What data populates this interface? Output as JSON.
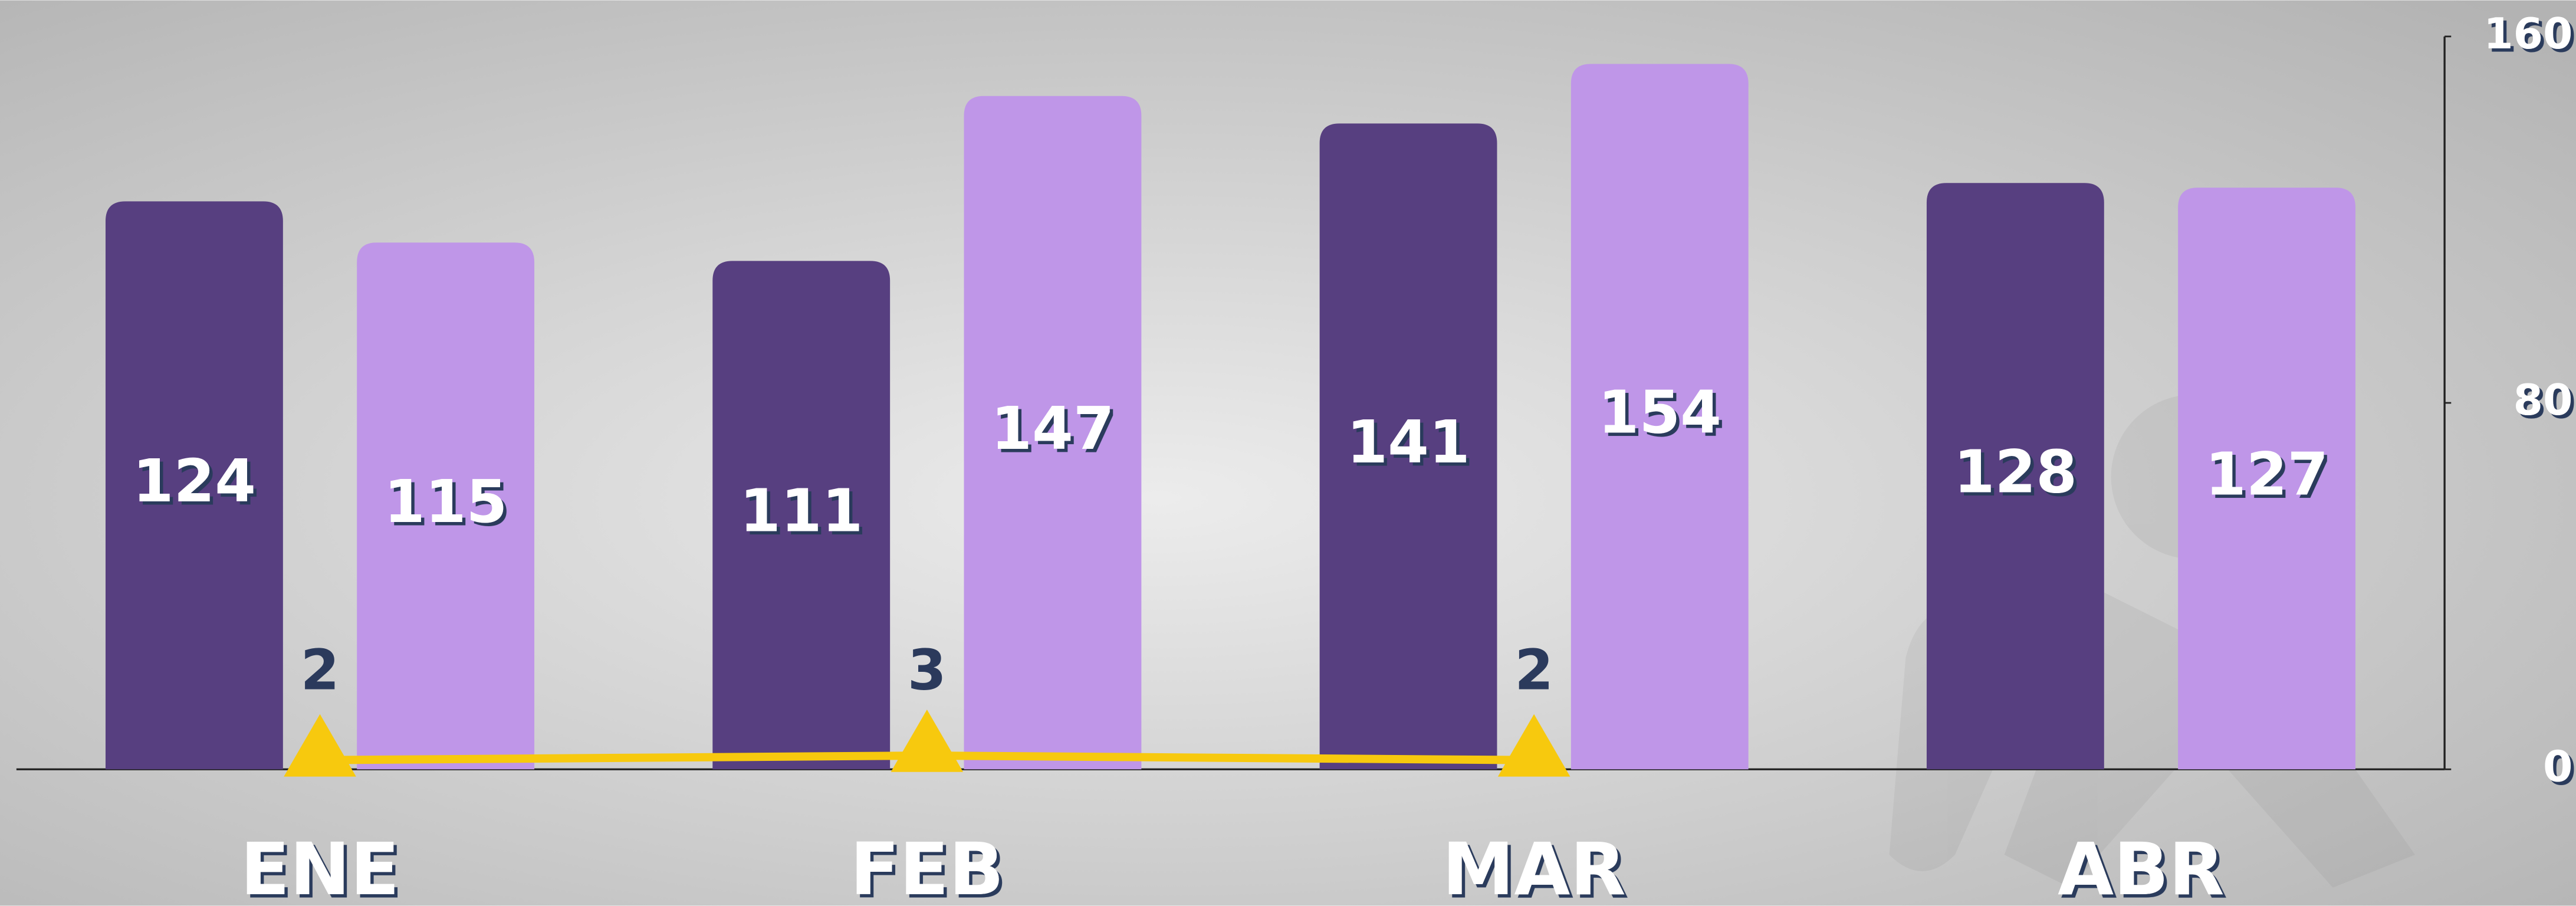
{
  "chart_data": {
    "type": "bar",
    "categories": [
      "ENE",
      "FEB",
      "MAR",
      "ABR"
    ],
    "series": [
      {
        "type": "bar",
        "color": "#573f80",
        "values": [
          124,
          111,
          141,
          128
        ]
      },
      {
        "type": "bar",
        "color": "#bf96e8",
        "values": [
          115,
          147,
          154,
          127
        ]
      },
      {
        "type": "line",
        "color": "#f7c90e",
        "values": [
          2,
          3,
          2,
          null
        ]
      }
    ],
    "ylim": [
      0,
      160
    ],
    "yticks": [
      0,
      80,
      160
    ],
    "y_axis_side": "right",
    "grid": false
  }
}
